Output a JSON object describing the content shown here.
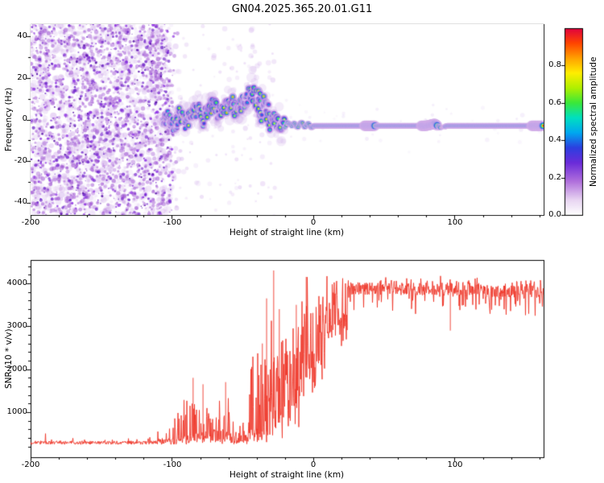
{
  "title": "GN04.2025.365.20.01.G11",
  "chart_data": [
    {
      "type": "heatmap",
      "name": "spectrogram",
      "xlabel": "Height of straight line (km)",
      "ylabel": "Frequency (Hz)",
      "xlim": [
        -200,
        163
      ],
      "ylim": [
        -46,
        46
      ],
      "xticks": [
        -200,
        -100,
        0,
        100
      ],
      "xtick_labels": [
        "-200",
        "-100",
        "0",
        "100"
      ],
      "yticks": [
        40,
        20,
        0,
        -20,
        -40
      ],
      "ytick_labels": [
        "40",
        "20",
        "0",
        "-20",
        "-40"
      ],
      "colorbar": {
        "label": "Normalized spectral amplitude",
        "vmin": 0,
        "vmax": 1,
        "ticks": [
          0.0,
          0.2,
          0.4,
          0.6,
          0.8
        ],
        "tick_labels": [
          "0.0",
          "0.2",
          "0.4",
          "0.6",
          "0.8"
        ],
        "stops": [
          [
            0,
            "#ffffff"
          ],
          [
            0.08,
            "#e8d5f2"
          ],
          [
            0.18,
            "#b06fdc"
          ],
          [
            0.28,
            "#6a2bd9"
          ],
          [
            0.36,
            "#2c3fe0"
          ],
          [
            0.44,
            "#00a8f0"
          ],
          [
            0.52,
            "#00e0c0"
          ],
          [
            0.6,
            "#3ae83a"
          ],
          [
            0.68,
            "#b0f000"
          ],
          [
            0.76,
            "#ffee00"
          ],
          [
            0.84,
            "#ffa000"
          ],
          [
            0.92,
            "#ff4400"
          ],
          [
            1,
            "#e00040"
          ]
        ]
      },
      "noise_region": {
        "x0": -200,
        "x1": -100,
        "description": "dense purple speckle noise, no coherent signal"
      },
      "trace": {
        "points": [
          [
            -106,
            -3
          ],
          [
            -102,
            1
          ],
          [
            -98,
            -4
          ],
          [
            -94,
            3
          ],
          [
            -90,
            -2
          ],
          [
            -86,
            2
          ],
          [
            -82,
            5
          ],
          [
            -78,
            0
          ],
          [
            -74,
            4
          ],
          [
            -70,
            7
          ],
          [
            -66,
            2
          ],
          [
            -62,
            6
          ],
          [
            -58,
            9
          ],
          [
            -54,
            4
          ],
          [
            -50,
            8
          ],
          [
            -46,
            11
          ],
          [
            -43,
            14
          ],
          [
            -40,
            10
          ],
          [
            -36,
            6
          ],
          [
            -32,
            3
          ],
          [
            -28,
            0
          ],
          [
            -24,
            -2
          ],
          [
            -20,
            -3
          ],
          [
            -16,
            -2
          ],
          [
            -12,
            -3
          ],
          [
            -8,
            -2
          ],
          [
            -4,
            -3
          ],
          [
            0,
            -3
          ],
          [
            20,
            -3
          ],
          [
            40,
            -3
          ],
          [
            60,
            -3
          ],
          [
            80,
            -3
          ],
          [
            86,
            -2
          ],
          [
            90,
            -4
          ],
          [
            95,
            -3
          ],
          [
            110,
            -3
          ],
          [
            130,
            -3
          ],
          [
            150,
            -3
          ],
          [
            163,
            -3
          ]
        ],
        "scatter_until": -20,
        "knot": [
          -46,
          -30
        ],
        "wide_lumps": [
          [
            36,
            44
          ],
          [
            76,
            88
          ],
          [
            154,
            163
          ]
        ],
        "gap": [
          90,
          93
        ]
      }
    },
    {
      "type": "line",
      "name": "snr",
      "xlabel": "Height of straight line (km)",
      "ylabel": "SNR (10 * v/v)",
      "color": "#ee3528",
      "xlim": [
        -200,
        163
      ],
      "ylim": [
        -50,
        4544
      ],
      "xticks": [
        -200,
        -100,
        0,
        100
      ],
      "xtick_labels": [
        "-200",
        "-100",
        "0",
        "100"
      ],
      "yticks": [
        1000,
        2000,
        3000,
        4000
      ],
      "ytick_labels": [
        "1000",
        "2000",
        "3000",
        "4000"
      ],
      "envelope": [
        {
          "x0": -200,
          "x1": -110,
          "base": 290,
          "jitter": 35,
          "spike_p": 0.03,
          "spike_max": 220
        },
        {
          "x0": -110,
          "x1": -96,
          "base": 320,
          "jitter": 60,
          "spike_p": 0.2,
          "spike_max": 800
        },
        {
          "x0": -96,
          "x1": -72,
          "base": 400,
          "jitter": 130,
          "spike_p": 0.35,
          "spike_max": 1350
        },
        {
          "x0": -72,
          "x1": -58,
          "base": 430,
          "jitter": 140,
          "spike_p": 0.3,
          "spike_max": 1250
        },
        {
          "x0": -58,
          "x1": -46,
          "base": 360,
          "jitter": 90,
          "spike_p": 0.2,
          "spike_max": 600
        },
        {
          "x0": -46,
          "x1": -32,
          "base": 550,
          "jitter": 220,
          "spike_p": 0.4,
          "spike_max": 2300
        },
        {
          "x0": -32,
          "x1": -20,
          "base": 850,
          "jitter": 380,
          "spike_p": 0.45,
          "spike_max": 2600
        },
        {
          "x0": -20,
          "x1": -8,
          "base": 1300,
          "jitter": 550,
          "spike_p": 0.5,
          "spike_max": 2100
        },
        {
          "x0": -8,
          "x1": 8,
          "base": 2100,
          "jitter": 650,
          "spike_p": 0.5,
          "spike_max": 1700
        },
        {
          "x0": 8,
          "x1": 24,
          "base": 3200,
          "jitter": 450,
          "spike_p": 0.4,
          "spike_max": 900
        },
        {
          "x0": 24,
          "x1": 60,
          "base": 3880,
          "jitter": 120,
          "spike_p": 0.25,
          "spike_max": 260
        },
        {
          "x0": 60,
          "x1": 120,
          "base": 3870,
          "jitter": 120,
          "spike_p": 0.25,
          "spike_max": 240
        },
        {
          "x0": 120,
          "x1": 145,
          "base": 3780,
          "jitter": 150,
          "spike_p": 0.3,
          "spike_max": 300
        },
        {
          "x0": 145,
          "x1": 163,
          "base": 3820,
          "jitter": 150,
          "spike_p": 0.3,
          "spike_max": 280
        }
      ],
      "notable_spikes": [
        {
          "x": -85,
          "v": 1800
        },
        {
          "x": -78,
          "v": 1650
        },
        {
          "x": -62,
          "v": 1700
        },
        {
          "x": -36,
          "v": 2600
        },
        {
          "x": -33,
          "v": 3650
        },
        {
          "x": -28,
          "v": 4300
        },
        {
          "x": -24,
          "v": 3400
        },
        {
          "x": -12,
          "v": 3500
        },
        {
          "x": -5,
          "v": 4150
        },
        {
          "x": 97,
          "v": 2900
        }
      ]
    }
  ]
}
